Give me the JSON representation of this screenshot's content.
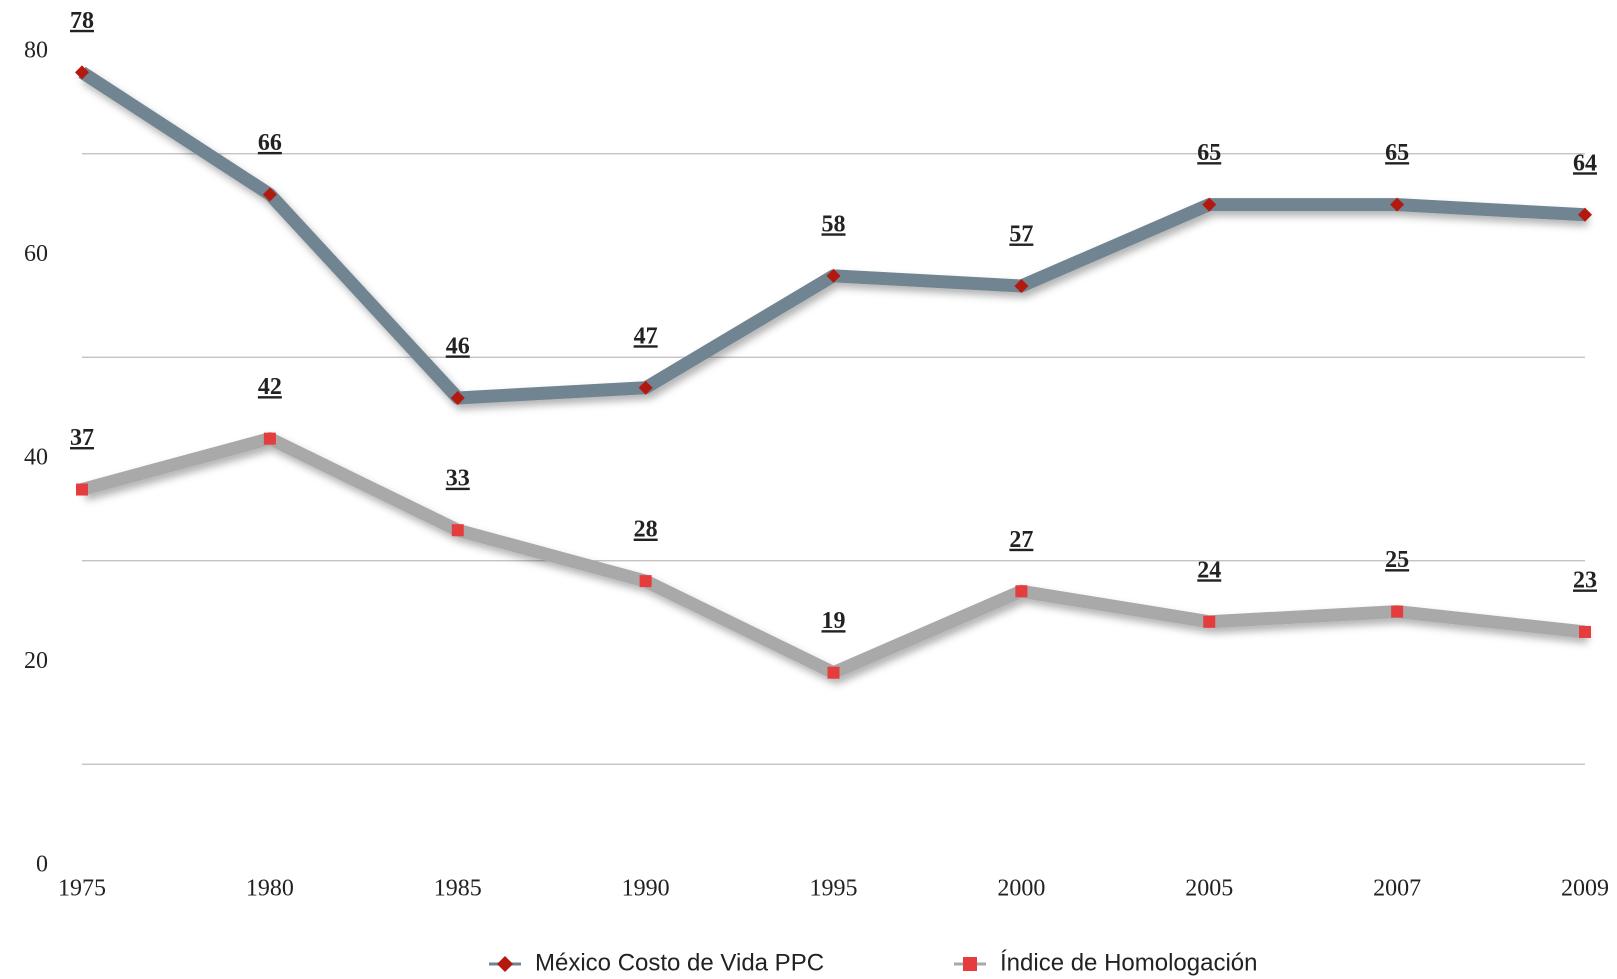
{
  "chart_data": {
    "type": "line",
    "categories": [
      "1975",
      "1980",
      "1985",
      "1990",
      "1995",
      "2000",
      "2005",
      "2007",
      "2009"
    ],
    "series": [
      {
        "name": "México Costo de Vida PPC",
        "color": "#6f8591",
        "marker_color": "#b3190f",
        "label_color": "#3c4088",
        "marker": "diamond",
        "values": [
          78,
          66,
          46,
          47,
          58,
          57,
          65,
          65,
          64
        ]
      },
      {
        "name": "Índice de Homologación",
        "color": "#a9a9a9",
        "marker_color": "#e53d3d",
        "label_color": "#d7281c",
        "marker": "square",
        "values": [
          37,
          42,
          33,
          28,
          19,
          27,
          24,
          25,
          23
        ]
      }
    ],
    "ylim": [
      0,
      80
    ],
    "yticks": [
      0,
      20,
      40,
      60,
      80
    ],
    "gridlines": [
      10,
      30,
      50,
      70
    ],
    "grid": true,
    "legend": "bottom"
  }
}
